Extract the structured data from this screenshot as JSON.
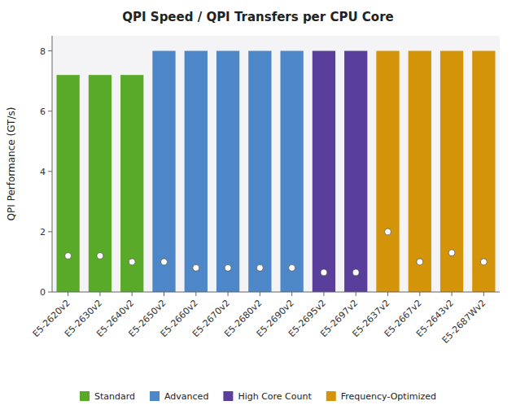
{
  "chart_data": {
    "type": "bar",
    "title": "QPI Speed / QPI Transfers per CPU Core",
    "ylabel": "QPI Performance (GT/s)",
    "categories": [
      "E5-2620v2",
      "E5-2630v2",
      "E5-2640v2",
      "E5-2650v2",
      "E5-2660v2",
      "E5-2670v2",
      "E5-2680v2",
      "E5-2690v2",
      "E5-2695v2",
      "E5-2697v2",
      "E5-2637v2",
      "E5-2667v2",
      "E5-2643v2",
      "E5-2687Wv2"
    ],
    "series": [
      {
        "type": "bar",
        "values": [
          7.2,
          7.2,
          7.2,
          8.0,
          8.0,
          8.0,
          8.0,
          8.0,
          8.0,
          8.0,
          8.0,
          8.0,
          8.0,
          8.0
        ],
        "colors": [
          "#5aaa2a",
          "#5aaa2a",
          "#5aaa2a",
          "#4d87c7",
          "#4d87c7",
          "#4d87c7",
          "#4d87c7",
          "#4d87c7",
          "#5a3e9c",
          "#5a3e9c",
          "#d4940a",
          "#d4940a",
          "#d4940a",
          "#d4940a"
        ]
      },
      {
        "type": "scatter",
        "marker": "circle",
        "color": "#ffffff",
        "values": [
          1.2,
          1.2,
          1.0,
          1.0,
          0.8,
          0.8,
          0.8,
          0.8,
          0.65,
          0.65,
          2.0,
          1.0,
          1.3,
          1.0
        ]
      }
    ],
    "groups": [
      {
        "name": "Standard",
        "color": "#5aaa2a"
      },
      {
        "name": "Advanced",
        "color": "#4d87c7"
      },
      {
        "name": "High Core Count",
        "color": "#5a3e9c"
      },
      {
        "name": "Frequency-Optimized",
        "color": "#d4940a"
      }
    ],
    "ylim": [
      0,
      8.5
    ],
    "yticks": [
      0,
      2,
      4,
      6,
      8
    ],
    "grid": false,
    "legend": "bottom"
  }
}
